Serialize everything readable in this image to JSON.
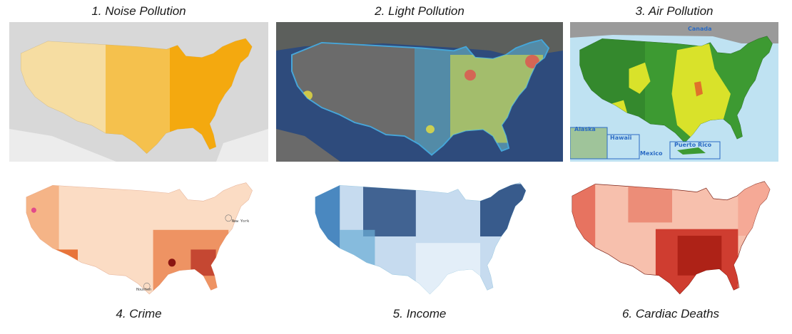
{
  "panels": [
    {
      "caption": "1. Noise Pollution"
    },
    {
      "caption": "2. Light Pollution"
    },
    {
      "caption": "3. Air Pollution",
      "labels": {
        "canada": "Canada",
        "alaska": "Alaska",
        "hawaii": "Hawaii",
        "mexico": "Mexico",
        "puerto_rico": "Puerto Rico"
      }
    },
    {
      "caption": "4. Crime",
      "labels": {
        "new_york": "New York",
        "houston": "Houston"
      }
    },
    {
      "caption": "5. Income"
    },
    {
      "caption": "6. Cardiac Deaths"
    }
  ],
  "colors": {
    "noise": "#f4a300",
    "light_bg": "#2e4b7c",
    "light_land": "#6b6b6b",
    "light_glow": "#e8e040",
    "air_green": "#3d9a32",
    "air_yellow": "#d9e22a",
    "crime": "#e8743a",
    "income": "#1f5fa0",
    "cardiac": "#d42a1c"
  }
}
